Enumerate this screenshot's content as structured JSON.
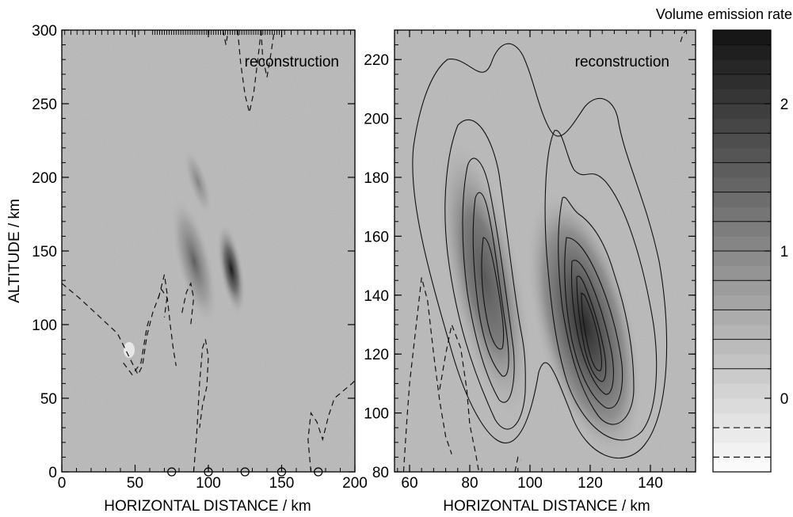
{
  "chart_data": [
    {
      "type": "heatmap",
      "panel": "left",
      "annotation": "reconstruction",
      "xlabel": "HORIZONTAL DISTANCE / km",
      "ylabel": "ALTITUDE / km",
      "xlim": [
        0,
        200
      ],
      "ylim": [
        0,
        300
      ],
      "xticks": [
        0,
        50,
        100,
        150,
        200
      ],
      "yticks": [
        0,
        50,
        100,
        150,
        200,
        250,
        300
      ],
      "xtick_labels": [
        "0",
        "50",
        "100",
        "150",
        "200"
      ],
      "ytick_labels": [
        "0",
        "50",
        "100",
        "150",
        "200",
        "250",
        "300"
      ],
      "station_markers_x": [
        75,
        100,
        125,
        150,
        175
      ],
      "features": [
        {
          "kind": "dark-streak",
          "center": [
            117,
            130
          ],
          "note": "strongest emission"
        },
        {
          "kind": "dark-streak",
          "center": [
            90,
            150
          ],
          "note": "weaker streak"
        }
      ],
      "dashed_contours": [
        [
          [
            0,
            128
          ],
          [
            12,
            118
          ],
          [
            25,
            106
          ],
          [
            38,
            94
          ],
          [
            44,
            82
          ],
          [
            49,
            72
          ],
          [
            52,
            66
          ],
          [
            55,
            72
          ],
          [
            58,
            92
          ],
          [
            62,
            108
          ],
          [
            68,
            124
          ],
          [
            72,
            118
          ],
          [
            74,
            100
          ],
          [
            76,
            84
          ],
          [
            78,
            72
          ]
        ],
        [
          [
            42,
            74
          ],
          [
            48,
            66
          ],
          [
            54,
            74
          ],
          [
            58,
            98
          ],
          [
            60,
            105
          ]
        ],
        [
          [
            90,
            0
          ],
          [
            92,
            25
          ],
          [
            94,
            60
          ],
          [
            96,
            84
          ],
          [
            98,
            90
          ],
          [
            100,
            78
          ],
          [
            99,
            58
          ],
          [
            96,
            45
          ],
          [
            94,
            30
          ]
        ],
        [
          [
            82,
            108
          ],
          [
            85,
            122
          ],
          [
            88,
            128
          ],
          [
            90,
            118
          ],
          [
            88,
            100
          ]
        ],
        [
          [
            66,
            118
          ],
          [
            70,
            134
          ],
          [
            72,
            120
          ],
          [
            70,
            105
          ]
        ],
        [
          [
            120,
            300
          ],
          [
            122,
            278
          ],
          [
            125,
            256
          ],
          [
            128,
            244
          ],
          [
            131,
            258
          ],
          [
            134,
            282
          ],
          [
            136,
            300
          ]
        ],
        [
          [
            110,
            300
          ],
          [
            112,
            290
          ],
          [
            113,
            296
          ]
        ],
        [
          [
            136,
            300
          ],
          [
            137,
            282
          ],
          [
            140,
            268
          ],
          [
            143,
            286
          ],
          [
            145,
            300
          ]
        ],
        [
          [
            170,
            0
          ],
          [
            168,
            22
          ],
          [
            170,
            40
          ],
          [
            174,
            34
          ],
          [
            178,
            22
          ],
          [
            182,
            38
          ],
          [
            186,
            50
          ],
          [
            198,
            60
          ],
          [
            200,
            62
          ]
        ]
      ]
    },
    {
      "type": "heatmap",
      "panel": "right",
      "annotation": "reconstruction",
      "xlabel": "HORIZONTAL DISTANCE / km",
      "ylabel": "",
      "xlim": [
        55,
        155
      ],
      "ylim": [
        80,
        230
      ],
      "xticks": [
        60,
        80,
        100,
        120,
        140
      ],
      "yticks": [
        80,
        100,
        120,
        140,
        160,
        180,
        200,
        220
      ],
      "xtick_labels": [
        "60",
        "80",
        "100",
        "120",
        "140"
      ],
      "ytick_labels": [
        "80",
        "100",
        "120",
        "140",
        "160",
        "180",
        "200",
        "220"
      ],
      "blobs": [
        {
          "center": [
            84,
            137
          ],
          "peak": 1.6
        },
        {
          "center": [
            119,
            127
          ],
          "peak": 2.3
        }
      ],
      "solid_contour_levels": 7,
      "dashed_contours": [
        [
          [
            58,
            80
          ],
          [
            59,
            96
          ],
          [
            60,
            110
          ],
          [
            62,
            128
          ],
          [
            64,
            146
          ],
          [
            66,
            138
          ],
          [
            68,
            120
          ],
          [
            70,
            104
          ],
          [
            72,
            92
          ],
          [
            74,
            86
          ]
        ],
        [
          [
            70,
            108
          ],
          [
            72,
            120
          ],
          [
            74,
            130
          ],
          [
            77,
            122
          ],
          [
            79,
            108
          ],
          [
            80,
            96
          ],
          [
            82,
            86
          ],
          [
            83,
            80
          ]
        ],
        [
          [
            95,
            80
          ],
          [
            96,
            85
          ],
          [
            97,
            84
          ]
        ],
        [
          [
            150,
            226
          ],
          [
            151,
            229
          ],
          [
            152,
            230
          ]
        ]
      ]
    },
    {
      "type": "colorbar",
      "title": "Volume emission rate",
      "range": [
        -0.5,
        2.5
      ],
      "tick_values": [
        0,
        1,
        2
      ],
      "tick_labels": [
        "0",
        "1",
        "2"
      ],
      "dashed_levels": [
        -0.2,
        -0.4
      ],
      "solid_levels": [
        0.2,
        0.4,
        0.6,
        0.8,
        1.0,
        1.2,
        1.4,
        1.6,
        1.8,
        2.0,
        2.2,
        2.4
      ]
    }
  ],
  "colors": {
    "background": "#b9b9b9",
    "contour": "#111111",
    "frame": "#000000"
  }
}
